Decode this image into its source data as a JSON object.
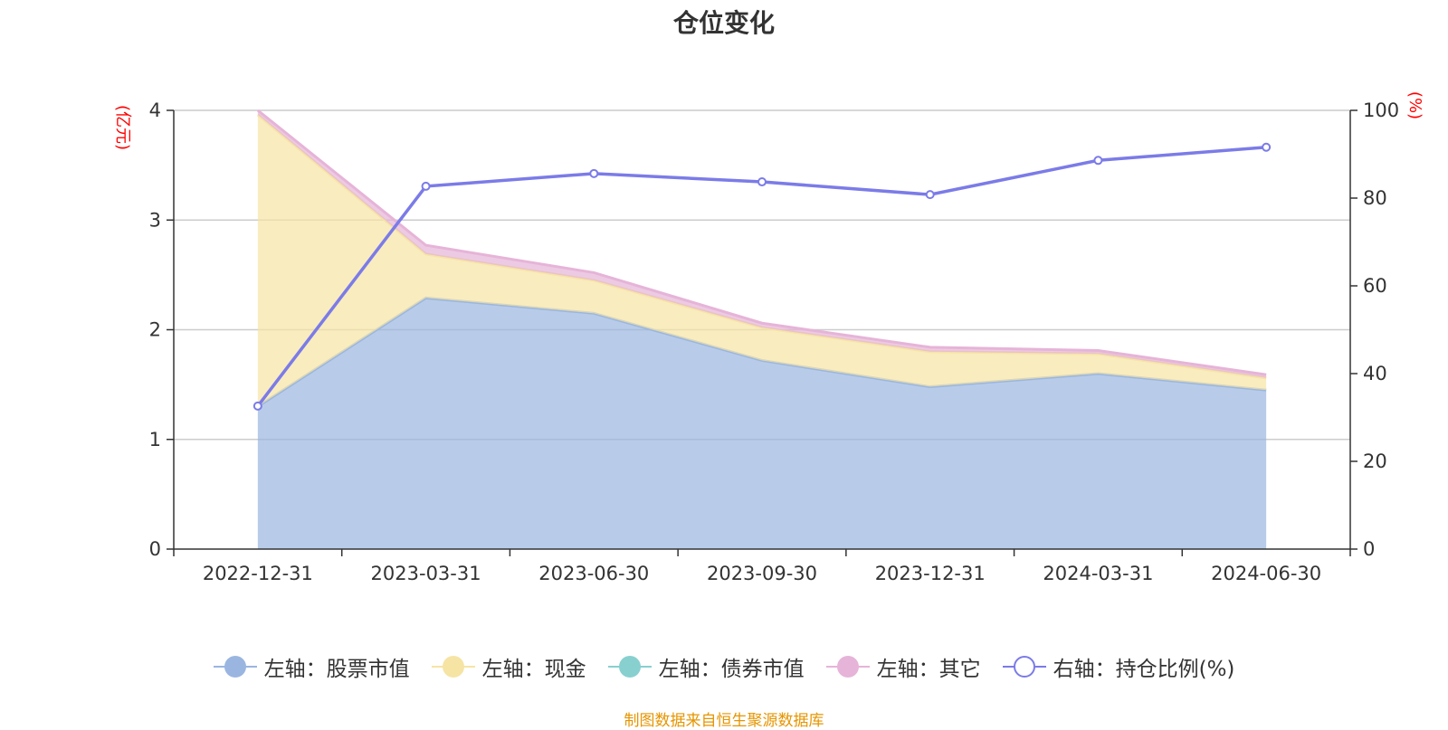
{
  "chart_data": {
    "type": "area",
    "title": "仓位变化",
    "left_axis_unit": "(亿元)",
    "right_axis_unit": "(%)",
    "categories": [
      "2022-12-31",
      "2023-03-31",
      "2023-06-30",
      "2023-09-30",
      "2023-12-31",
      "2024-03-31",
      "2024-06-30"
    ],
    "left_ylim": [
      0,
      4
    ],
    "left_yticks": [
      "0",
      "1",
      "2",
      "3",
      "4"
    ],
    "right_ylim": [
      0,
      100
    ],
    "right_yticks": [
      "0",
      "20",
      "40",
      "60",
      "80",
      "100"
    ],
    "grid": true,
    "legend_position": "bottom",
    "stacked": true,
    "series": [
      {
        "name": "左轴：股票市值",
        "axis": "left",
        "type": "area",
        "color": "#9ab6e0",
        "values": [
          1.3,
          2.29,
          2.15,
          1.72,
          1.48,
          1.6,
          1.45
        ]
      },
      {
        "name": "左轴：现金",
        "axis": "left",
        "type": "area",
        "color": "#f6e4a4",
        "values": [
          2.66,
          0.4,
          0.3,
          0.3,
          0.32,
          0.18,
          0.11
        ]
      },
      {
        "name": "左轴：债券市值",
        "axis": "left",
        "type": "area",
        "color": "#88d0d0",
        "values": [
          0,
          0,
          0,
          0,
          0,
          0,
          0
        ]
      },
      {
        "name": "左轴：其它",
        "axis": "left",
        "type": "area",
        "color": "#e6b4d8",
        "values": [
          0.04,
          0.08,
          0.07,
          0.04,
          0.04,
          0.03,
          0.03
        ]
      },
      {
        "name": "右轴：持仓比例(%)",
        "axis": "right",
        "type": "line",
        "color": "#7b7be8",
        "values": [
          32.6,
          82.7,
          85.6,
          83.7,
          80.8,
          88.6,
          91.6
        ]
      }
    ]
  },
  "source_note": "制图数据来自恒生聚源数据库"
}
